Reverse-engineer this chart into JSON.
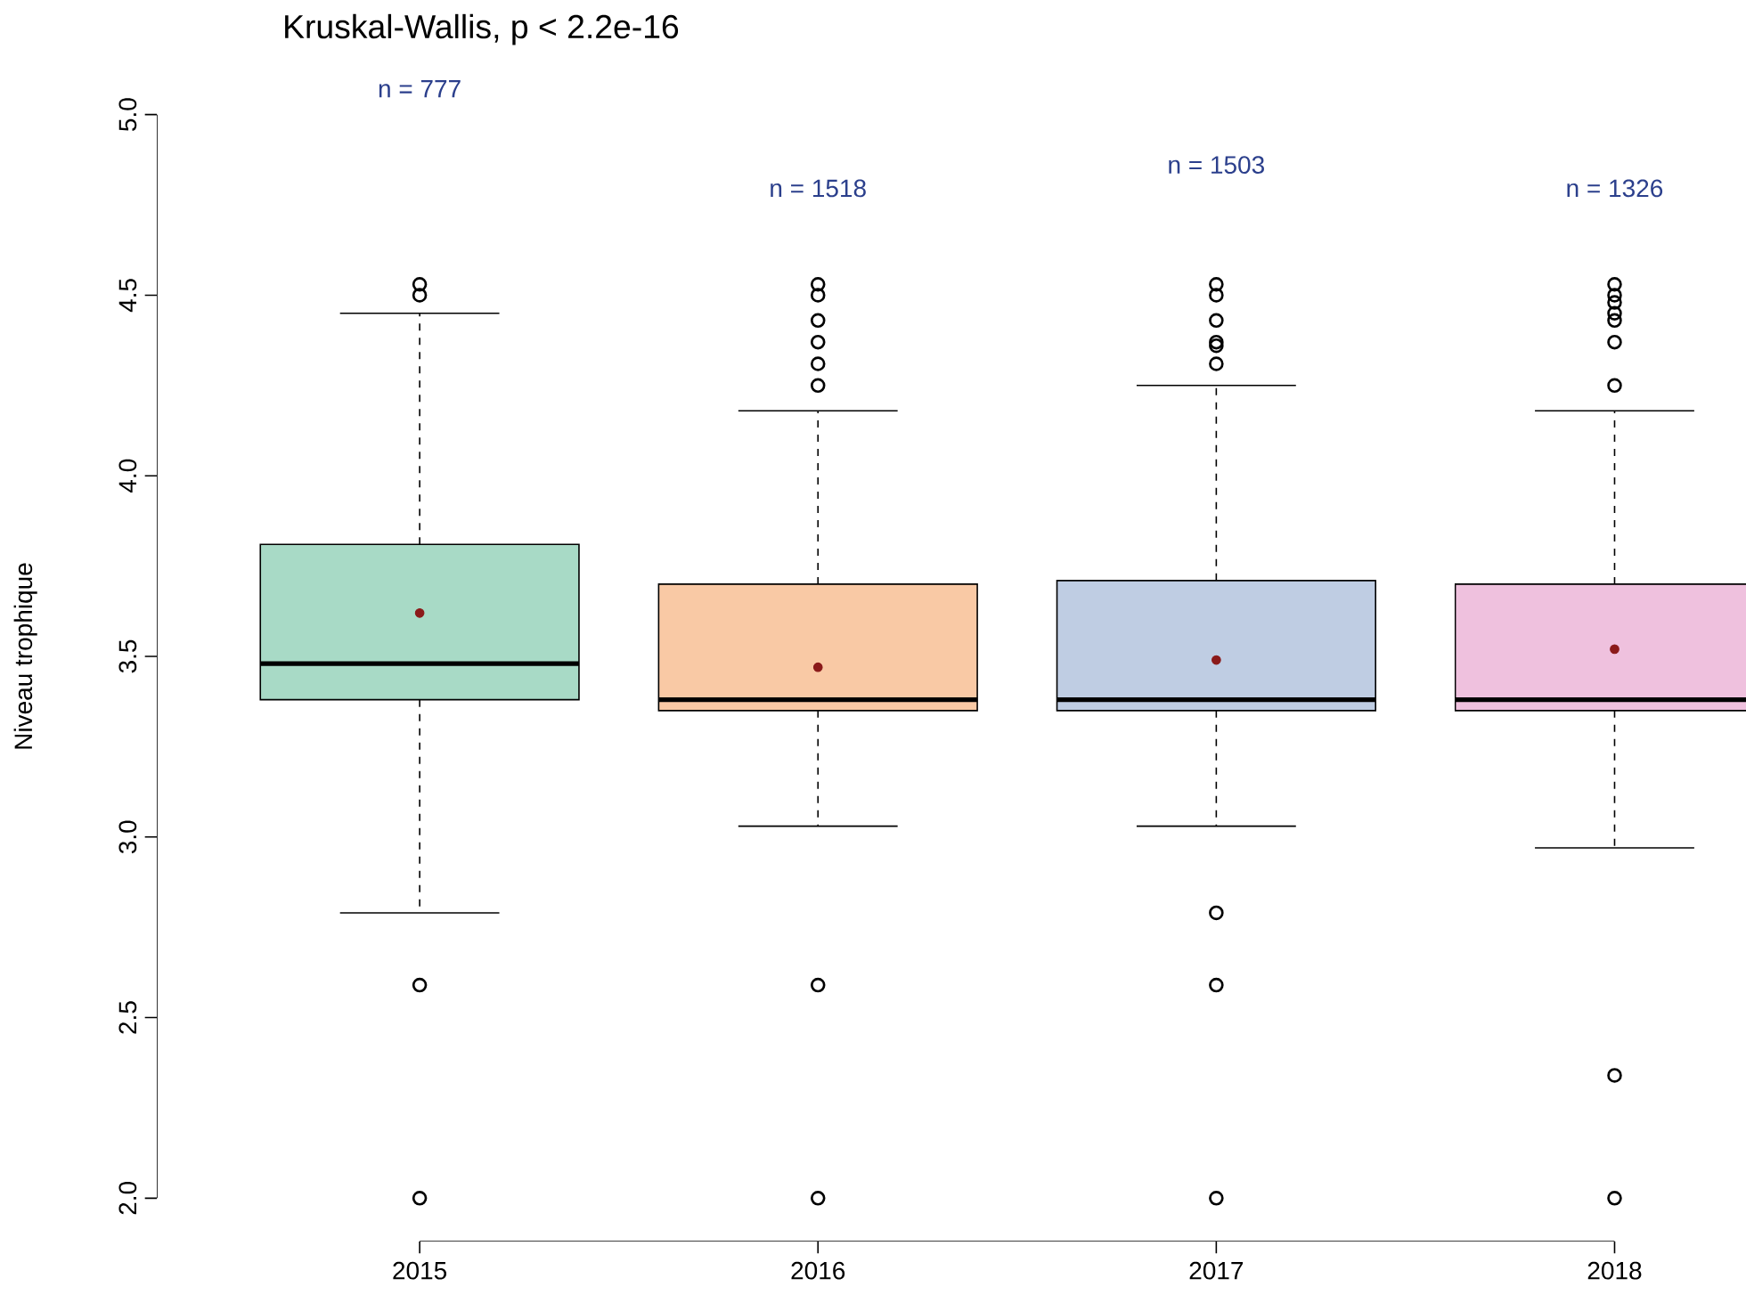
{
  "chart_data": {
    "type": "box",
    "title": "Kruskal-Wallis, p < 2.2e-16",
    "ylabel": "Niveau trophique",
    "categories": [
      "2015",
      "2016",
      "2017",
      "2018"
    ],
    "colors": [
      "#a8dac6",
      "#f9c9a5",
      "#bfcde3",
      "#efc1de"
    ],
    "boxes": [
      {
        "low": 2.79,
        "q1": 3.38,
        "median": 3.48,
        "q3": 3.81,
        "high": 4.45,
        "mean": 3.62,
        "outliers": [
          4.53,
          4.5,
          2.59,
          2.0
        ]
      },
      {
        "low": 3.03,
        "q1": 3.35,
        "median": 3.38,
        "q3": 3.7,
        "high": 4.18,
        "mean": 3.47,
        "outliers": [
          4.53,
          4.5,
          4.43,
          4.37,
          4.31,
          4.25,
          2.59,
          2.0
        ]
      },
      {
        "low": 3.03,
        "q1": 3.35,
        "median": 3.38,
        "q3": 3.71,
        "high": 4.25,
        "mean": 3.49,
        "outliers": [
          4.53,
          4.5,
          4.43,
          4.37,
          4.36,
          4.31,
          2.79,
          2.59,
          2.0
        ]
      },
      {
        "low": 2.97,
        "q1": 3.35,
        "median": 3.38,
        "q3": 3.7,
        "high": 4.18,
        "mean": 3.52,
        "outliers": [
          4.53,
          4.5,
          4.48,
          4.45,
          4.43,
          4.37,
          4.25,
          2.34,
          2.0
        ]
      }
    ],
    "ylim": [
      2,
      5
    ],
    "yticks": [
      {
        "value": 2,
        "label": "2.0"
      },
      {
        "value": 2.5,
        "label": "2.5"
      },
      {
        "value": 3,
        "label": "3.0"
      },
      {
        "value": 3.5,
        "label": "3.5"
      },
      {
        "value": 4,
        "label": "4.0"
      },
      {
        "value": 4.5,
        "label": "4.5"
      },
      {
        "value": 5,
        "label": "5.0"
      }
    ],
    "annotations": [
      "n = 777",
      "n = 1518",
      "n = 1503",
      "n = 1326"
    ]
  }
}
